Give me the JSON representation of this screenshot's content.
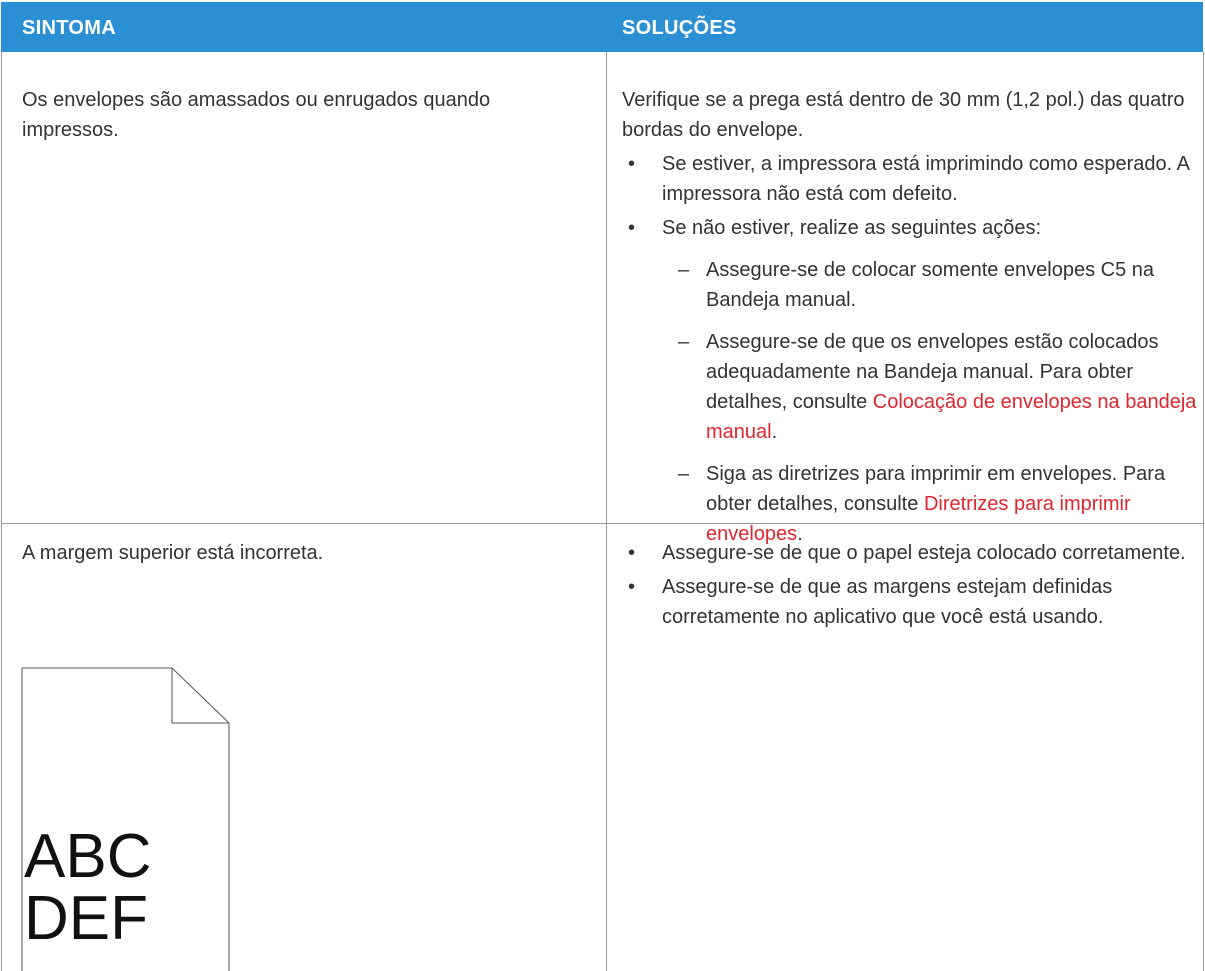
{
  "header": {
    "symptom": "SINTOMA",
    "solutions": "SOLUÇÕES"
  },
  "rows": [
    {
      "symptom": "Os envelopes são amassados ou enrugados quando impressos.",
      "intro": "Verifique se a prega está dentro de 30 mm (1,2 pol.) das quatro bordas do envelope.",
      "items": [
        {
          "text": "Se estiver, a impressora está imprimindo como esperado. A impressora não está com defeito."
        },
        {
          "text": "Se não estiver, realize as seguintes ações:",
          "subitems": [
            {
              "text": "Assegure-se de colocar somente envelopes C5 na Bandeja manual."
            },
            {
              "text": "Assegure-se de que os envelopes estão colocados adequadamente na Bandeja manual. Para obter detalhes, consulte",
              "link": "Colocação de envelopes na bandeja manual",
              "end": "."
            },
            {
              "text": "Siga as diretrizes para imprimir em envelopes. Para obter detalhes, consulte",
              "link": "Diretrizes para imprimir envelopes",
              "end": "."
            }
          ]
        }
      ]
    },
    {
      "symptom": "A margem superior está incorreta.",
      "image_text": [
        "ABC",
        "DEF"
      ],
      "items": [
        {
          "text": "Assegure-se de que o papel esteja colocado corretamente."
        },
        {
          "text": "Assegure-se de que as margens estejam definidas corretamente no aplicativo que você está usando."
        }
      ]
    }
  ]
}
